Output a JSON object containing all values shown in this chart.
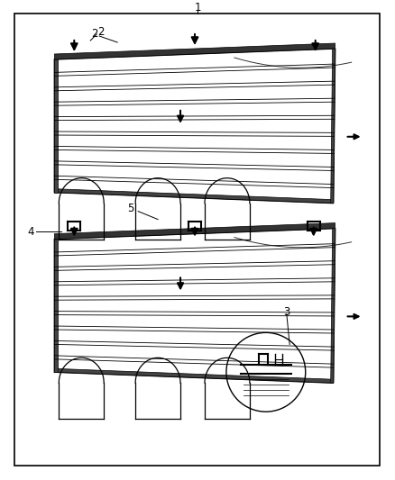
{
  "bg": "#ffffff",
  "lc": "#000000",
  "border_lw": 1.2,
  "label_fs": 8.5,
  "fig_w": 4.38,
  "fig_h": 5.33,
  "labels": {
    "1": "1",
    "2": "2",
    "3": "3",
    "4": "4",
    "5": "5"
  }
}
